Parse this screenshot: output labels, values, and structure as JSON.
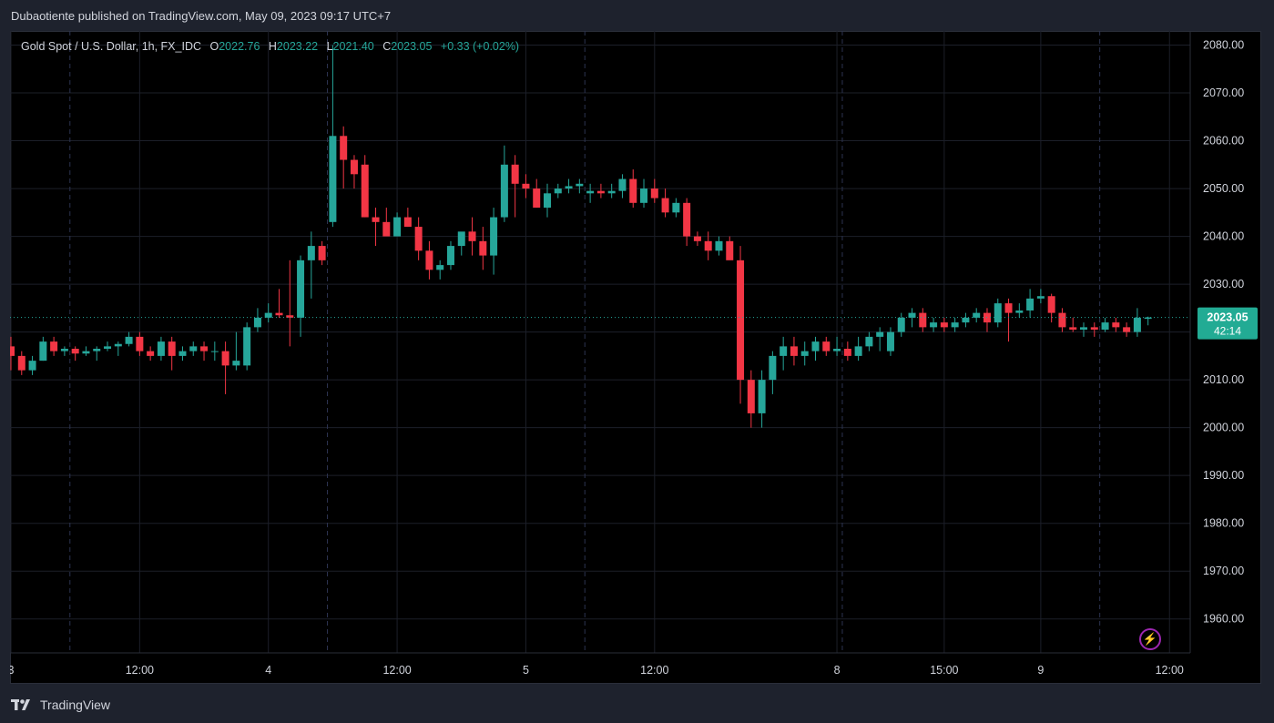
{
  "header": {
    "published": "Dubaotiente published on TradingView.com, May 09, 2023 09:17 UTC+7"
  },
  "legend": {
    "symbol": "Gold Spot / U.S. Dollar, 1h, FX_IDC",
    "o_key": "O",
    "o": "2022.76",
    "h_key": "H",
    "h": "2023.22",
    "l_key": "L",
    "l": "2021.40",
    "c_key": "C",
    "c": "2023.05",
    "change": "+0.33 (+0.02%)"
  },
  "footer": {
    "brand": "TradingView",
    "logo_icon": "tradingview-logo-icon"
  },
  "chart_data": {
    "type": "candlestick",
    "ylim": [
      1955,
      2082
    ],
    "yticks": [
      "2080.00",
      "2070.00",
      "2060.00",
      "2050.00",
      "2040.00",
      "2030.00",
      "2020.00",
      "2010.00",
      "2000.00",
      "1990.00",
      "1980.00",
      "1970.00",
      "1960.00"
    ],
    "yticks_values": [
      2080,
      2070,
      2060,
      2050,
      2040,
      2030,
      2020,
      2010,
      2000,
      1990,
      1980,
      1970,
      1960
    ],
    "xticks": [
      {
        "label": "3",
        "bar": 0
      },
      {
        "label": "12:00",
        "bar": 12
      },
      {
        "label": "4",
        "bar": 24
      },
      {
        "label": "12:00",
        "bar": 36
      },
      {
        "label": "5",
        "bar": 48
      },
      {
        "label": "12:00",
        "bar": 60
      },
      {
        "label": "8",
        "bar": 77
      },
      {
        "label": "15:00",
        "bar": 87
      },
      {
        "label": "9",
        "bar": 96
      },
      {
        "label": "12:00",
        "bar": 108
      }
    ],
    "current_price": "2023.05",
    "countdown": "42:14",
    "colors": {
      "up": "#26a69a",
      "down": "#f23645",
      "grid": "#1c1f29",
      "axis_text": "#d1d4dc",
      "price_label": "#22ab94"
    },
    "candles": [
      [
        2017,
        2019,
        2012,
        2015
      ],
      [
        2015,
        2016,
        2011,
        2012
      ],
      [
        2012,
        2015,
        2011,
        2014
      ],
      [
        2014,
        2019,
        2014,
        2018
      ],
      [
        2018,
        2019,
        2015,
        2016
      ],
      [
        2016,
        2017,
        2015,
        2016.5
      ],
      [
        2016.5,
        2017,
        2014,
        2015.5
      ],
      [
        2015.5,
        2017,
        2015,
        2016
      ],
      [
        2016,
        2017,
        2014,
        2016.5
      ],
      [
        2016.5,
        2018,
        2016,
        2017
      ],
      [
        2017,
        2018,
        2015,
        2017.5
      ],
      [
        2017.5,
        2020,
        2017,
        2019
      ],
      [
        2019,
        2020,
        2015,
        2016
      ],
      [
        2016,
        2017,
        2014,
        2015
      ],
      [
        2015,
        2019,
        2014,
        2018
      ],
      [
        2018,
        2019,
        2012,
        2015
      ],
      [
        2015,
        2017,
        2014,
        2016
      ],
      [
        2016,
        2018,
        2015,
        2017
      ],
      [
        2017,
        2018,
        2014,
        2016
      ],
      [
        2016,
        2018,
        2014,
        2016
      ],
      [
        2016,
        2018,
        2007,
        2013
      ],
      [
        2013,
        2020,
        2012,
        2014
      ],
      [
        2013,
        2022,
        2012,
        2021
      ],
      [
        2021,
        2025,
        2020,
        2023
      ],
      [
        2023,
        2026,
        2022,
        2024
      ],
      [
        2024,
        2029,
        2023,
        2023.5
      ],
      [
        2023.5,
        2035,
        2017,
        2023
      ],
      [
        2023,
        2036,
        2019,
        2035
      ],
      [
        2035,
        2041,
        2027,
        2038
      ],
      [
        2038,
        2039,
        2034,
        2035
      ],
      [
        2043,
        2080,
        2042,
        2061
      ],
      [
        2061,
        2063,
        2050,
        2056
      ],
      [
        2056,
        2057,
        2050,
        2053
      ],
      [
        2055,
        2057,
        2044,
        2044
      ],
      [
        2044,
        2046,
        2038,
        2043
      ],
      [
        2043,
        2046,
        2041,
        2040
      ],
      [
        2040,
        2045,
        2040,
        2044
      ],
      [
        2044,
        2046,
        2042,
        2042
      ],
      [
        2042,
        2044,
        2035,
        2037
      ],
      [
        2037,
        2039,
        2031,
        2033
      ],
      [
        2033,
        2035,
        2031,
        2034
      ],
      [
        2034,
        2039,
        2033,
        2038
      ],
      [
        2038,
        2040,
        2036,
        2041
      ],
      [
        2041,
        2044,
        2036,
        2039
      ],
      [
        2039,
        2042,
        2033,
        2036
      ],
      [
        2036,
        2046,
        2032,
        2044
      ],
      [
        2044,
        2059,
        2043,
        2055
      ],
      [
        2055,
        2057,
        2044,
        2051
      ],
      [
        2051,
        2053,
        2048,
        2050
      ],
      [
        2050,
        2052,
        2046,
        2046
      ],
      [
        2046,
        2051,
        2044,
        2049
      ],
      [
        2049,
        2051,
        2048,
        2050
      ],
      [
        2050,
        2052,
        2049,
        2050.5
      ],
      [
        2050.5,
        2052,
        2049,
        2051
      ],
      [
        2049,
        2051,
        2047,
        2049.5
      ],
      [
        2049.5,
        2051,
        2048,
        2049
      ],
      [
        2049,
        2051,
        2048,
        2049.5
      ],
      [
        2049.5,
        2053,
        2048,
        2052
      ],
      [
        2052,
        2054,
        2046,
        2047
      ],
      [
        2047,
        2052,
        2046,
        2050
      ],
      [
        2050,
        2052,
        2047,
        2048
      ],
      [
        2048,
        2050,
        2044,
        2045
      ],
      [
        2045,
        2048,
        2044,
        2047
      ],
      [
        2047,
        2048,
        2038,
        2040
      ],
      [
        2040,
        2041,
        2038,
        2039
      ],
      [
        2039,
        2041,
        2035,
        2037
      ],
      [
        2037,
        2040,
        2036,
        2039
      ],
      [
        2039,
        2040,
        2036,
        2035
      ],
      [
        2035,
        2038,
        2005,
        2010
      ],
      [
        2010,
        2012,
        2000,
        2003
      ],
      [
        2003,
        2012,
        2000,
        2010
      ],
      [
        2010,
        2016,
        2007,
        2015
      ],
      [
        2015,
        2019,
        2012,
        2017
      ],
      [
        2017,
        2019,
        2013,
        2015
      ],
      [
        2015,
        2018,
        2013,
        2016
      ],
      [
        2016,
        2019,
        2014,
        2018
      ],
      [
        2018,
        2019,
        2015,
        2016
      ],
      [
        2016,
        2019,
        2015,
        2016.5
      ],
      [
        2016.5,
        2018,
        2014,
        2015
      ],
      [
        2015,
        2019,
        2014,
        2017
      ],
      [
        2017,
        2020,
        2016,
        2019
      ],
      [
        2019,
        2021,
        2016,
        2020
      ],
      [
        2016,
        2021,
        2015,
        2020
      ],
      [
        2020,
        2024,
        2019,
        2023
      ],
      [
        2023,
        2025,
        2021,
        2024
      ],
      [
        2024,
        2025,
        2020,
        2021
      ],
      [
        2021,
        2023,
        2020,
        2022
      ],
      [
        2022,
        2023,
        2020,
        2021
      ],
      [
        2021,
        2023,
        2020,
        2022
      ],
      [
        2022,
        2024,
        2021,
        2023
      ],
      [
        2023,
        2025,
        2022,
        2024
      ],
      [
        2024,
        2025,
        2020,
        2022
      ],
      [
        2022,
        2027,
        2021,
        2026
      ],
      [
        2026,
        2027,
        2018,
        2024
      ],
      [
        2024,
        2026,
        2023,
        2024.5
      ],
      [
        2024.5,
        2029,
        2023,
        2027
      ],
      [
        2027,
        2029,
        2026,
        2027.5
      ],
      [
        2027.5,
        2028,
        2022,
        2024
      ],
      [
        2024,
        2025,
        2020,
        2021
      ],
      [
        2021,
        2023,
        2020,
        2020.5
      ],
      [
        2020.5,
        2022,
        2019,
        2021
      ],
      [
        2021,
        2022,
        2019,
        2020.5
      ],
      [
        2020.5,
        2023,
        2020,
        2022
      ],
      [
        2022,
        2023,
        2020,
        2021
      ],
      [
        2021,
        2022,
        2019,
        2020
      ],
      [
        2020,
        2025,
        2019,
        2023
      ],
      [
        2022.76,
        2023.22,
        2021.4,
        2023.05
      ]
    ]
  }
}
